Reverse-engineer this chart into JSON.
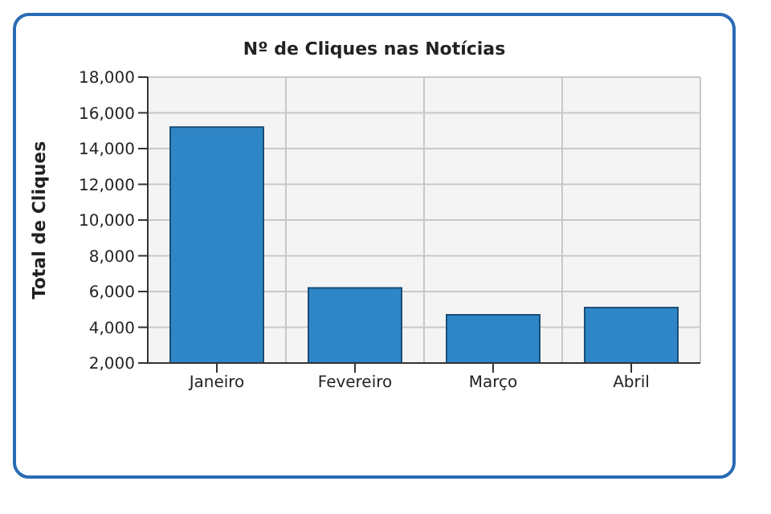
{
  "chart_data": {
    "type": "bar",
    "title": "Nº de Cliques nas Notícias",
    "ylabel": "Total de Cliques",
    "categories": [
      "Janeiro",
      "Fevereiro",
      "Março",
      "Abril"
    ],
    "values": [
      15200,
      6200,
      4700,
      5100
    ],
    "color": "#2f86c6",
    "ylim": [
      2000,
      18000
    ],
    "yticks": [
      {
        "value": 2000,
        "label": "2,000"
      },
      {
        "value": 4000,
        "label": "4,000"
      },
      {
        "value": 6000,
        "label": "6,000"
      },
      {
        "value": 8000,
        "label": "8,000"
      },
      {
        "value": 10000,
        "label": "10,000"
      },
      {
        "value": 12000,
        "label": "12,000"
      },
      {
        "value": 14000,
        "label": "14,000"
      },
      {
        "value": 16000,
        "label": "16,000"
      },
      {
        "value": 18000,
        "label": "18,000"
      }
    ],
    "grid": true
  }
}
